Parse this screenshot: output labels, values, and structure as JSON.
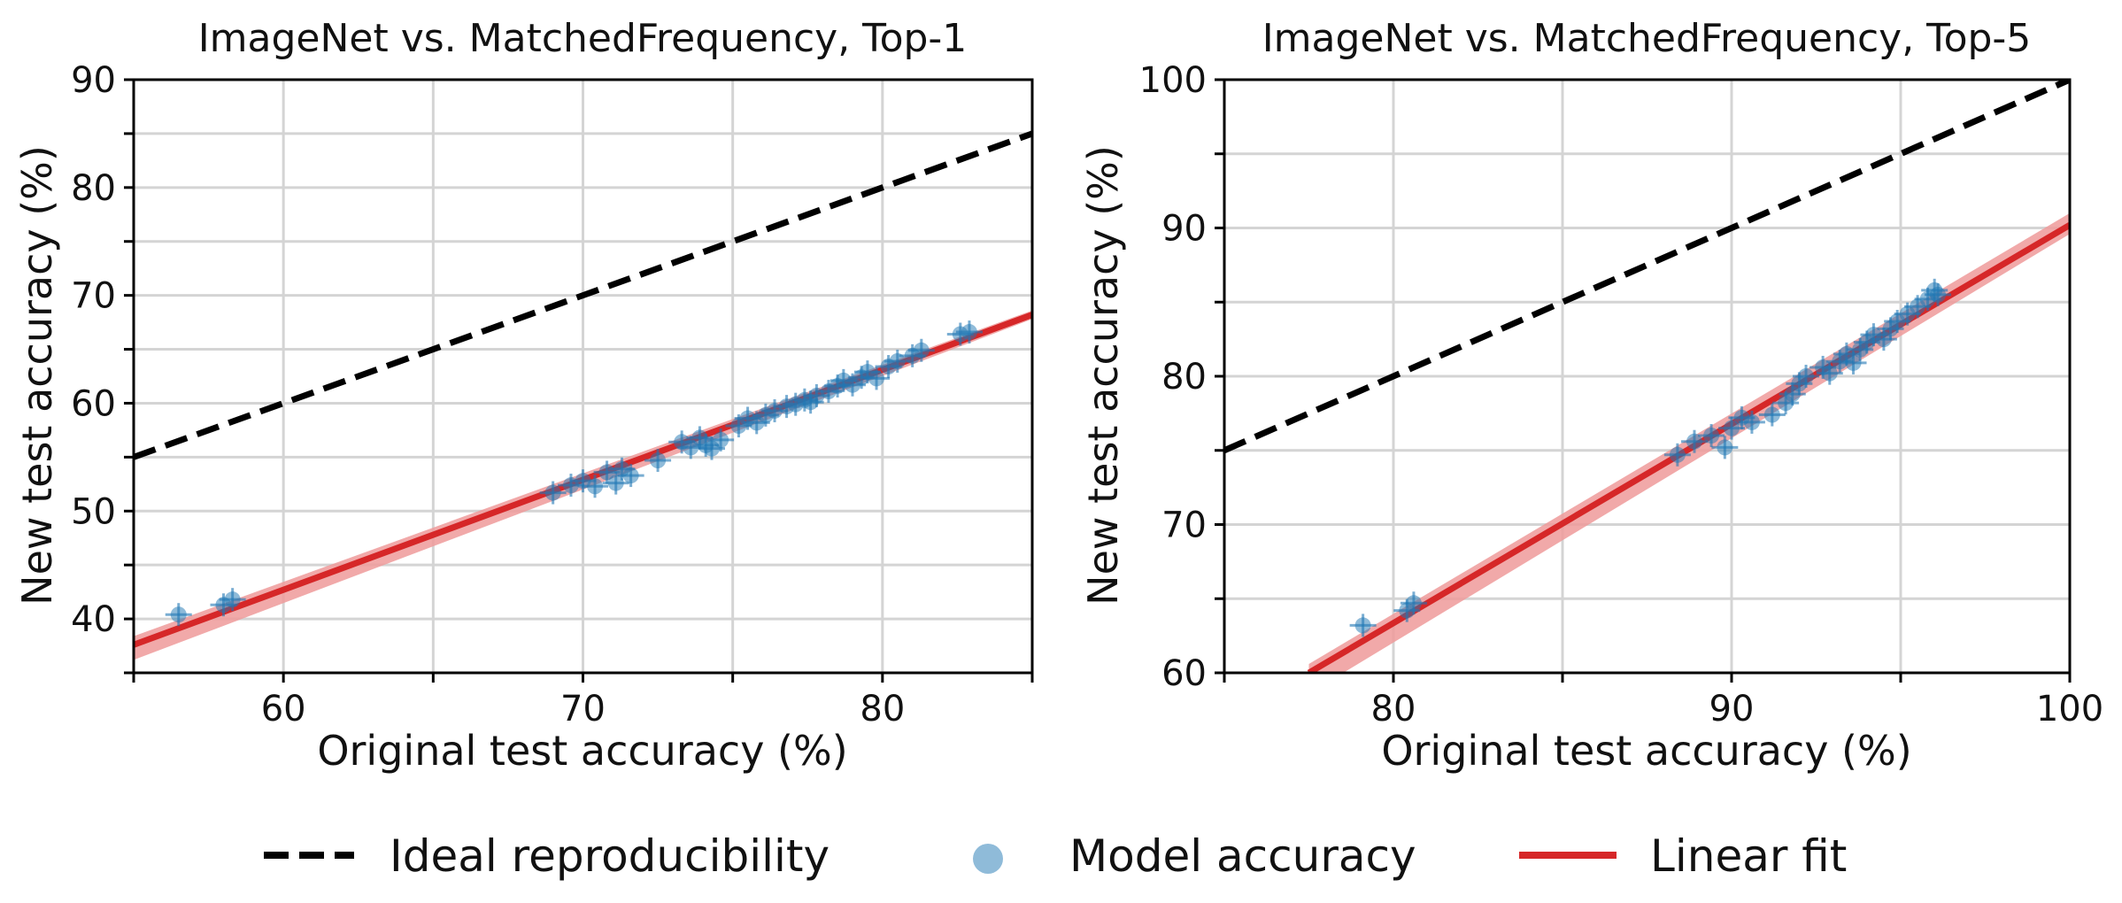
{
  "chart_data": [
    {
      "type": "scatter",
      "title": "ImageNet vs. MatchedFrequency, Top-1",
      "xlabel": "Original test accuracy (%)",
      "ylabel": "New test accuracy (%)",
      "xlim": [
        55,
        85
      ],
      "ylim": [
        35,
        90
      ],
      "xticks": [
        "60",
        "70",
        "80"
      ],
      "yticks": [
        "40",
        "50",
        "60",
        "70",
        "80",
        "90"
      ],
      "grid": true,
      "series": [
        {
          "name": "Ideal reproducibility",
          "kind": "line",
          "style": "dashed",
          "color": "#000000",
          "x": [
            55,
            85
          ],
          "y": [
            55,
            85
          ]
        },
        {
          "name": "Linear fit",
          "kind": "line",
          "color": "#d62728",
          "band_color": "#ef9a9a",
          "x": [
            55,
            85
          ],
          "y": [
            37.6,
            68.2
          ],
          "band_lower": [
            36.2,
            67.8
          ],
          "band_upper": [
            38.4,
            68.6
          ]
        },
        {
          "name": "Model accuracy",
          "kind": "scatter",
          "color": "#1f77b4",
          "x": [
            56.5,
            58.0,
            58.3,
            69.0,
            69.6,
            70.0,
            70.4,
            70.8,
            71.1,
            71.3,
            71.6,
            72.5,
            73.3,
            73.6,
            73.9,
            74.1,
            74.3,
            74.6,
            75.2,
            75.5,
            75.8,
            76.1,
            76.4,
            76.8,
            77.1,
            77.4,
            77.6,
            77.8,
            78.2,
            78.5,
            78.7,
            79.0,
            79.3,
            79.5,
            79.8,
            80.2,
            80.5,
            81.0,
            81.3,
            82.6,
            82.9
          ],
          "y": [
            40.4,
            41.3,
            41.8,
            51.7,
            52.4,
            52.8,
            52.3,
            53.6,
            52.6,
            53.9,
            53.3,
            54.7,
            56.4,
            55.9,
            56.8,
            56.1,
            55.8,
            56.6,
            57.9,
            58.6,
            58.2,
            58.9,
            59.3,
            59.7,
            59.9,
            60.3,
            60.1,
            60.7,
            61.1,
            61.6,
            62.1,
            61.7,
            62.4,
            62.9,
            62.3,
            63.4,
            63.9,
            64.4,
            64.9,
            66.4,
            66.6
          ]
        }
      ]
    },
    {
      "type": "scatter",
      "title": "ImageNet vs. MatchedFrequency, Top-5",
      "xlabel": "Original test accuracy (%)",
      "ylabel": "New test accuracy (%)",
      "xlim": [
        75,
        100
      ],
      "ylim": [
        60,
        100
      ],
      "xticks": [
        "80",
        "90",
        "100"
      ],
      "yticks": [
        "60",
        "70",
        "80",
        "90",
        "100"
      ],
      "grid": true,
      "series": [
        {
          "name": "Ideal reproducibility",
          "kind": "line",
          "style": "dashed",
          "color": "#000000",
          "x": [
            75,
            100
          ],
          "y": [
            75,
            100
          ]
        },
        {
          "name": "Linear fit",
          "kind": "line",
          "color": "#d62728",
          "band_color": "#ef9a9a",
          "x": [
            77.5,
            100
          ],
          "y": [
            60.0,
            90.2
          ],
          "band_lower": [
            58.6,
            89.6
          ],
          "band_upper": [
            60.6,
            91.0
          ]
        },
        {
          "name": "Model accuracy",
          "kind": "scatter",
          "color": "#1f77b4",
          "x": [
            79.1,
            80.4,
            80.6,
            88.4,
            88.9,
            89.4,
            89.8,
            90.0,
            90.3,
            90.6,
            91.2,
            91.6,
            91.8,
            92.0,
            92.2,
            92.7,
            92.9,
            93.2,
            93.4,
            93.6,
            93.8,
            94.0,
            94.2,
            94.5,
            94.7,
            94.9,
            95.2,
            95.5,
            95.8,
            96.0,
            96.1
          ],
          "y": [
            63.2,
            64.2,
            64.7,
            74.7,
            75.6,
            76.0,
            75.2,
            76.5,
            77.2,
            76.9,
            77.4,
            78.2,
            78.8,
            79.5,
            80.0,
            80.6,
            80.2,
            81.0,
            81.5,
            80.9,
            81.8,
            82.3,
            82.8,
            82.5,
            83.2,
            83.7,
            84.2,
            84.7,
            85.2,
            85.8,
            85.5
          ]
        }
      ]
    }
  ],
  "legend": [
    {
      "label": "Ideal reproducibility",
      "style": "dashed",
      "color": "#000000"
    },
    {
      "label": "Model accuracy",
      "style": "marker",
      "color": "#1f77b4"
    },
    {
      "label": "Linear fit",
      "style": "line",
      "color": "#d62728"
    }
  ]
}
